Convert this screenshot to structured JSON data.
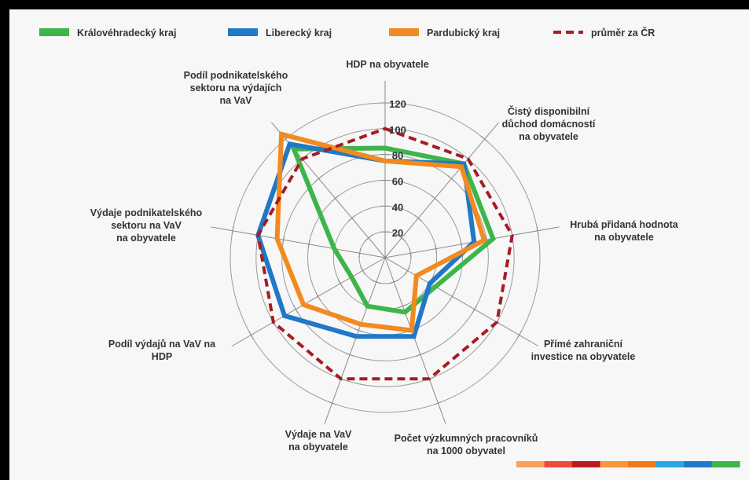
{
  "chart_data": {
    "type": "radar",
    "axes": [
      [
        "HDP na obyvatele"
      ],
      [
        "Čistý disponibilní",
        "důchod domácností",
        "na obyvatele"
      ],
      [
        "Hrubá přidaná hodnota",
        "na obyvatele"
      ],
      [
        "Přímé zahraniční",
        "investice na obyvatele"
      ],
      [
        "Počet výzkumných pracovníků",
        "na 1000 obyvatel"
      ],
      [
        "Výdaje na VaV",
        "na obyvatele"
      ],
      [
        "Podíl výdajů na VaV na",
        "HDP"
      ],
      [
        "Výdaje podnikatelského",
        "sektoru na VaV",
        "na obyvatele"
      ],
      [
        "Podíl podnikatelského",
        "sektoru na výdajích",
        "na VaV"
      ]
    ],
    "r_ticks": [
      "20",
      "40",
      "60",
      "80",
      "100",
      "120"
    ],
    "r_max": 120,
    "series": [
      {
        "name": "Královéhradecký kraj",
        "color": "#3db54a",
        "style": "solid",
        "values": [
          85,
          95,
          85,
          45,
          45,
          40,
          30,
          40,
          110
        ]
      },
      {
        "name": "Liberecký kraj",
        "color": "#1f78c8",
        "style": "solid",
        "values": [
          75,
          95,
          70,
          40,
          65,
          65,
          90,
          100,
          115
        ]
      },
      {
        "name": "Pardubický kraj",
        "color": "#f28a1f",
        "style": "solid",
        "values": [
          75,
          92,
          78,
          28,
          60,
          55,
          73,
          85,
          125
        ]
      },
      {
        "name": "průměr za ČR",
        "color": "#a51c24",
        "style": "dashed",
        "values": [
          100,
          100,
          100,
          100,
          100,
          100,
          100,
          100,
          100
        ]
      }
    ],
    "legend_position": "top",
    "grid": true
  },
  "deco_stripe": [
    "#f6a15c",
    "#ed4b3a",
    "#b71c22",
    "#f7963a",
    "#f27a1d",
    "#2aa7e0",
    "#1f78c8",
    "#3db54a"
  ]
}
